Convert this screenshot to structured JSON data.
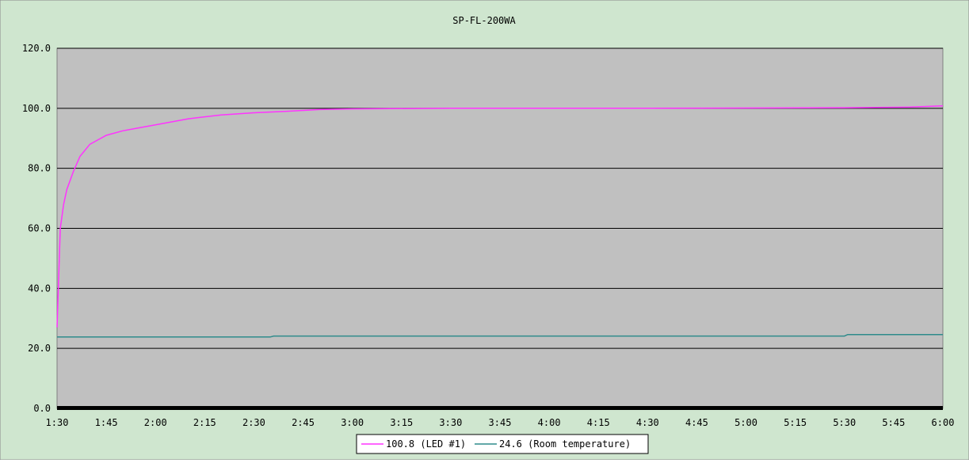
{
  "chart_data": {
    "type": "line",
    "title": "SP-FL-200WA",
    "xlabel": "",
    "ylabel": "",
    "ylim": [
      0,
      120
    ],
    "yticks": [
      "0.0",
      "20.0",
      "40.0",
      "60.0",
      "80.0",
      "100.0",
      "120.0"
    ],
    "xlim_minutes": [
      90,
      360
    ],
    "xticks": [
      "1:30",
      "1:45",
      "2:00",
      "2:15",
      "2:30",
      "2:45",
      "3:00",
      "3:15",
      "3:30",
      "3:45",
      "4:00",
      "4:15",
      "4:30",
      "4:45",
      "5:00",
      "5:15",
      "5:30",
      "5:45",
      "6:00"
    ],
    "grid": true,
    "legend_position": "bottom-center",
    "colors": {
      "page_background": "#cfe6cf",
      "plot_background": "#c0c0c0",
      "gridline": "#000000"
    },
    "series": [
      {
        "name": "100.8 (LED #1)",
        "color": "#ff33ff",
        "x": [
          "1:30",
          "1:31",
          "1:32",
          "1:33",
          "1:35",
          "1:37",
          "1:40",
          "1:45",
          "1:50",
          "1:55",
          "2:00",
          "2:10",
          "2:20",
          "2:30",
          "2:40",
          "2:50",
          "3:00",
          "3:30",
          "4:00",
          "4:30",
          "5:00",
          "5:30",
          "5:50",
          "6:00"
        ],
        "values": [
          27,
          60,
          68,
          73,
          79,
          84,
          88,
          91,
          92.5,
          93.5,
          94.5,
          96.5,
          97.8,
          98.5,
          99.0,
          99.6,
          99.8,
          100.0,
          100.0,
          100.0,
          100.1,
          100.2,
          100.4,
          100.8
        ]
      },
      {
        "name": "24.6 (Room temperature)",
        "color": "#2e8b8b",
        "x": [
          "1:30",
          "2:35",
          "2:36",
          "5:30",
          "5:31",
          "6:00"
        ],
        "values": [
          23.8,
          23.8,
          24.1,
          24.1,
          24.6,
          24.6
        ]
      }
    ]
  }
}
